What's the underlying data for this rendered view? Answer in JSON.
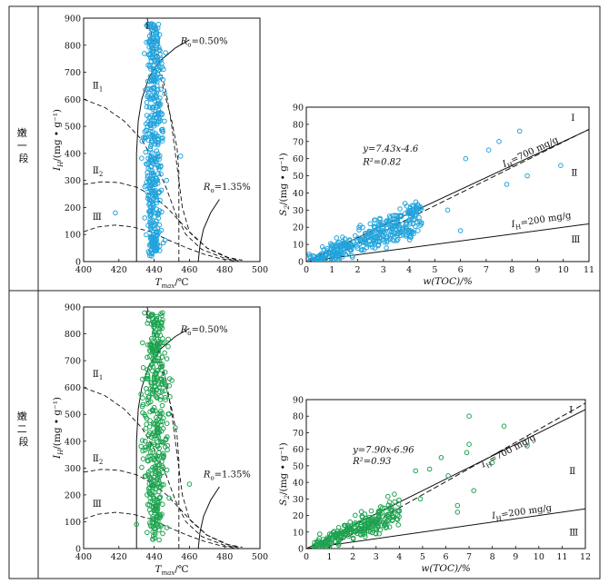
{
  "rows": [
    {
      "label": "嫩\n一\n段"
    },
    {
      "label": "嫩\n二\n段"
    }
  ],
  "chart_data": [
    {
      "id": "r1-left",
      "type": "scatter",
      "xlabel": "Tmax/℃",
      "ylabel": "IH/(mg • g⁻¹)",
      "xlim": [
        400,
        500
      ],
      "ylim": [
        0,
        900
      ],
      "xticks": [
        "400",
        "420",
        "440",
        "460",
        "480",
        "500"
      ],
      "yticks": [
        "0",
        "100",
        "200",
        "300",
        "400",
        "500",
        "600",
        "700",
        "800",
        "900"
      ],
      "marker_color": "#22a3dc",
      "zone_labels": [
        "Ⅰ",
        "Ⅱ1",
        "Ⅱ2",
        "Ⅲ"
      ],
      "annotations": [
        "Ro=0.50%",
        "Ro=1.35%"
      ],
      "point_cloud": {
        "x_center": 439.8,
        "x_spread": 2.6,
        "y_min": 20,
        "y_max": 880,
        "count": 460,
        "outliers": [
          [
            418,
            180
          ],
          [
            455,
            390
          ],
          [
            447,
            300
          ]
        ]
      }
    },
    {
      "id": "r1-right",
      "type": "scatter",
      "xlabel": "w(TOC)/%",
      "ylabel": "S2/(mg • g⁻¹)",
      "xlim": [
        0,
        11
      ],
      "ylim": [
        0,
        90
      ],
      "xticks": [
        "0",
        "1",
        "2",
        "3",
        "4",
        "5",
        "6",
        "7",
        "8",
        "9",
        "10",
        "11"
      ],
      "yticks": [
        "0",
        "10",
        "20",
        "30",
        "40",
        "50",
        "60",
        "70",
        "80",
        "90"
      ],
      "marker_color": "#22a3dc",
      "equation": "y=7.43x-4.6",
      "r2": "R²=0.82",
      "fit": {
        "slope": 7.43,
        "intercept": -4.6
      },
      "boundaries": [
        {
          "label": "IH=700 mg/g",
          "slope": 7.0
        },
        {
          "label": "IH=200 mg/g",
          "slope": 2.0
        }
      ],
      "zone_labels": [
        "Ⅰ",
        "Ⅱ",
        "Ⅲ"
      ],
      "point_cloud": {
        "x_min": 0.1,
        "x_max": 4.5,
        "count": 380,
        "outliers": [
          [
            8.3,
            76
          ],
          [
            7.5,
            70
          ],
          [
            9.9,
            56
          ],
          [
            8.6,
            50
          ],
          [
            6.2,
            60
          ],
          [
            7.1,
            65
          ],
          [
            6.0,
            18
          ],
          [
            5.5,
            30
          ],
          [
            7.8,
            45
          ]
        ]
      }
    },
    {
      "id": "r2-left",
      "type": "scatter",
      "xlabel": "Tmax/℃",
      "ylabel": "IH/(mg • g⁻¹)",
      "xlim": [
        400,
        500
      ],
      "ylim": [
        0,
        900
      ],
      "xticks": [
        "400",
        "420",
        "440",
        "460",
        "480",
        "500"
      ],
      "yticks": [
        "0",
        "100",
        "200",
        "300",
        "400",
        "500",
        "600",
        "700",
        "800",
        "900"
      ],
      "marker_color": "#1ea350",
      "zone_labels": [
        "Ⅰ",
        "Ⅱ1",
        "Ⅱ2",
        "Ⅲ"
      ],
      "annotations": [
        "Ro=0.50%",
        "Ro=1.35%"
      ],
      "point_cloud": {
        "x_center": 440.5,
        "x_spread": 3.2,
        "y_min": 30,
        "y_max": 880,
        "count": 430,
        "outliers": [
          [
            448,
            780
          ],
          [
            445,
            640
          ],
          [
            452,
            450
          ],
          [
            430,
            90
          ],
          [
            436,
            60
          ],
          [
            460,
            240
          ]
        ]
      }
    },
    {
      "id": "r2-right",
      "type": "scatter",
      "xlabel": "w(TOC)/%",
      "ylabel": "S2/(mg • g⁻¹)",
      "xlim": [
        0,
        12
      ],
      "ylim": [
        0,
        90
      ],
      "xticks": [
        "0",
        "1",
        "2",
        "3",
        "4",
        "5",
        "6",
        "7",
        "8",
        "9",
        "10",
        "11",
        "12"
      ],
      "yticks": [
        "0",
        "10",
        "20",
        "30",
        "40",
        "50",
        "60",
        "70",
        "80",
        "90"
      ],
      "marker_color": "#1ea350",
      "equation": "y=7.90x-6.96",
      "r2": "R²=0.93",
      "fit": {
        "slope": 7.9,
        "intercept": -6.96
      },
      "boundaries": [
        {
          "label": "IH=700 mg/g",
          "slope": 7.0
        },
        {
          "label": "IH=200 mg/g",
          "slope": 2.0
        }
      ],
      "zone_labels": [
        "Ⅰ",
        "Ⅱ",
        "Ⅲ"
      ],
      "point_cloud": {
        "x_min": 0.3,
        "x_max": 4.0,
        "count": 260,
        "outliers": [
          [
            7.0,
            80
          ],
          [
            8.5,
            74
          ],
          [
            7.0,
            63
          ],
          [
            6.9,
            58
          ],
          [
            9.5,
            62
          ],
          [
            5.8,
            55
          ],
          [
            6.1,
            44
          ],
          [
            6.5,
            26
          ],
          [
            6.5,
            22
          ],
          [
            7.2,
            35
          ],
          [
            5.3,
            48
          ],
          [
            4.7,
            47
          ],
          [
            8.0,
            52
          ],
          [
            4.9,
            30
          ]
        ]
      }
    }
  ]
}
